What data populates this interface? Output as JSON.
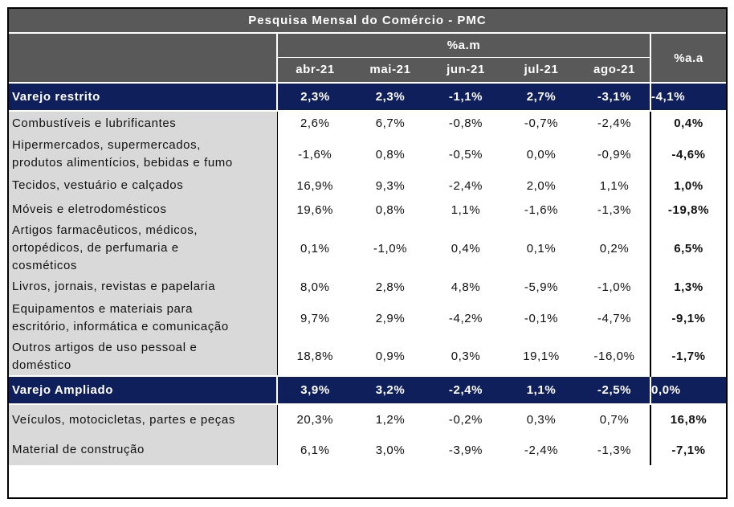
{
  "title": "Pesquisa Mensal do Comércio - PMC",
  "header": {
    "pam_label": "%a.m",
    "paa_label": "%a.a",
    "months": [
      "abr-21",
      "mai-21",
      "jun-21",
      "jul-21",
      "ago-21"
    ]
  },
  "rows": [
    {
      "kind": "total",
      "label": [
        "Varejo restrito"
      ],
      "values": [
        "2,3%",
        "2,3%",
        "-1,1%",
        "2,7%",
        "-3,1%"
      ],
      "aa": "-4,1%"
    },
    {
      "kind": "row",
      "label": [
        "Combustíveis e lubrificantes"
      ],
      "values": [
        "2,6%",
        "6,7%",
        "-0,8%",
        "-0,7%",
        "-2,4%"
      ],
      "aa": "0,4%"
    },
    {
      "kind": "row",
      "label": [
        "Hipermercados, supermercados,",
        "produtos alimentícios, bebidas e fumo"
      ],
      "values": [
        "-1,6%",
        "0,8%",
        "-0,5%",
        "0,0%",
        "-0,9%"
      ],
      "aa": "-4,6%"
    },
    {
      "kind": "row",
      "label": [
        "Tecidos, vestuário e calçados"
      ],
      "values": [
        "16,9%",
        "9,3%",
        "-2,4%",
        "2,0%",
        "1,1%"
      ],
      "aa": "1,0%"
    },
    {
      "kind": "row",
      "label": [
        "Móveis e eletrodomésticos"
      ],
      "values": [
        "19,6%",
        "0,8%",
        "1,1%",
        "-1,6%",
        "-1,3%"
      ],
      "aa": "-19,8%"
    },
    {
      "kind": "row",
      "label": [
        "Artigos farmacêuticos, médicos,",
        "ortopédicos, de perfumaria e",
        "cosméticos"
      ],
      "values": [
        "0,1%",
        "-1,0%",
        "0,4%",
        "0,1%",
        "0,2%"
      ],
      "aa": "6,5%"
    },
    {
      "kind": "row",
      "label": [
        "Livros, jornais, revistas e papelaria"
      ],
      "values": [
        "8,0%",
        "2,8%",
        "4,8%",
        "-5,9%",
        "-1,0%"
      ],
      "aa": "1,3%"
    },
    {
      "kind": "row",
      "label": [
        "Equipamentos e materiais para",
        "escritório, informática e comunicação"
      ],
      "values": [
        "9,7%",
        "2,9%",
        "-4,2%",
        "-0,1%",
        "-4,7%"
      ],
      "aa": "-9,1%"
    },
    {
      "kind": "row",
      "label": [
        "Outros artigos de uso pessoal e",
        "doméstico"
      ],
      "values": [
        "18,8%",
        "0,9%",
        "0,3%",
        "19,1%",
        "-16,0%"
      ],
      "aa": "-1,7%"
    },
    {
      "kind": "total",
      "label": [
        "Varejo Ampliado"
      ],
      "values": [
        "3,9%",
        "3,2%",
        "-2,4%",
        "1,1%",
        "-2,5%"
      ],
      "aa": "0,0%"
    },
    {
      "kind": "row",
      "label": [
        "Veículos, motocicletas, partes e peças"
      ],
      "values": [
        "20,3%",
        "1,2%",
        "-0,2%",
        "0,3%",
        "0,7%"
      ],
      "aa": "16,8%"
    },
    {
      "kind": "row",
      "label": [
        "Material de construção"
      ],
      "values": [
        "6,1%",
        "3,0%",
        "-3,9%",
        "-2,4%",
        "-1,3%"
      ],
      "aa": "-7,1%"
    }
  ]
}
